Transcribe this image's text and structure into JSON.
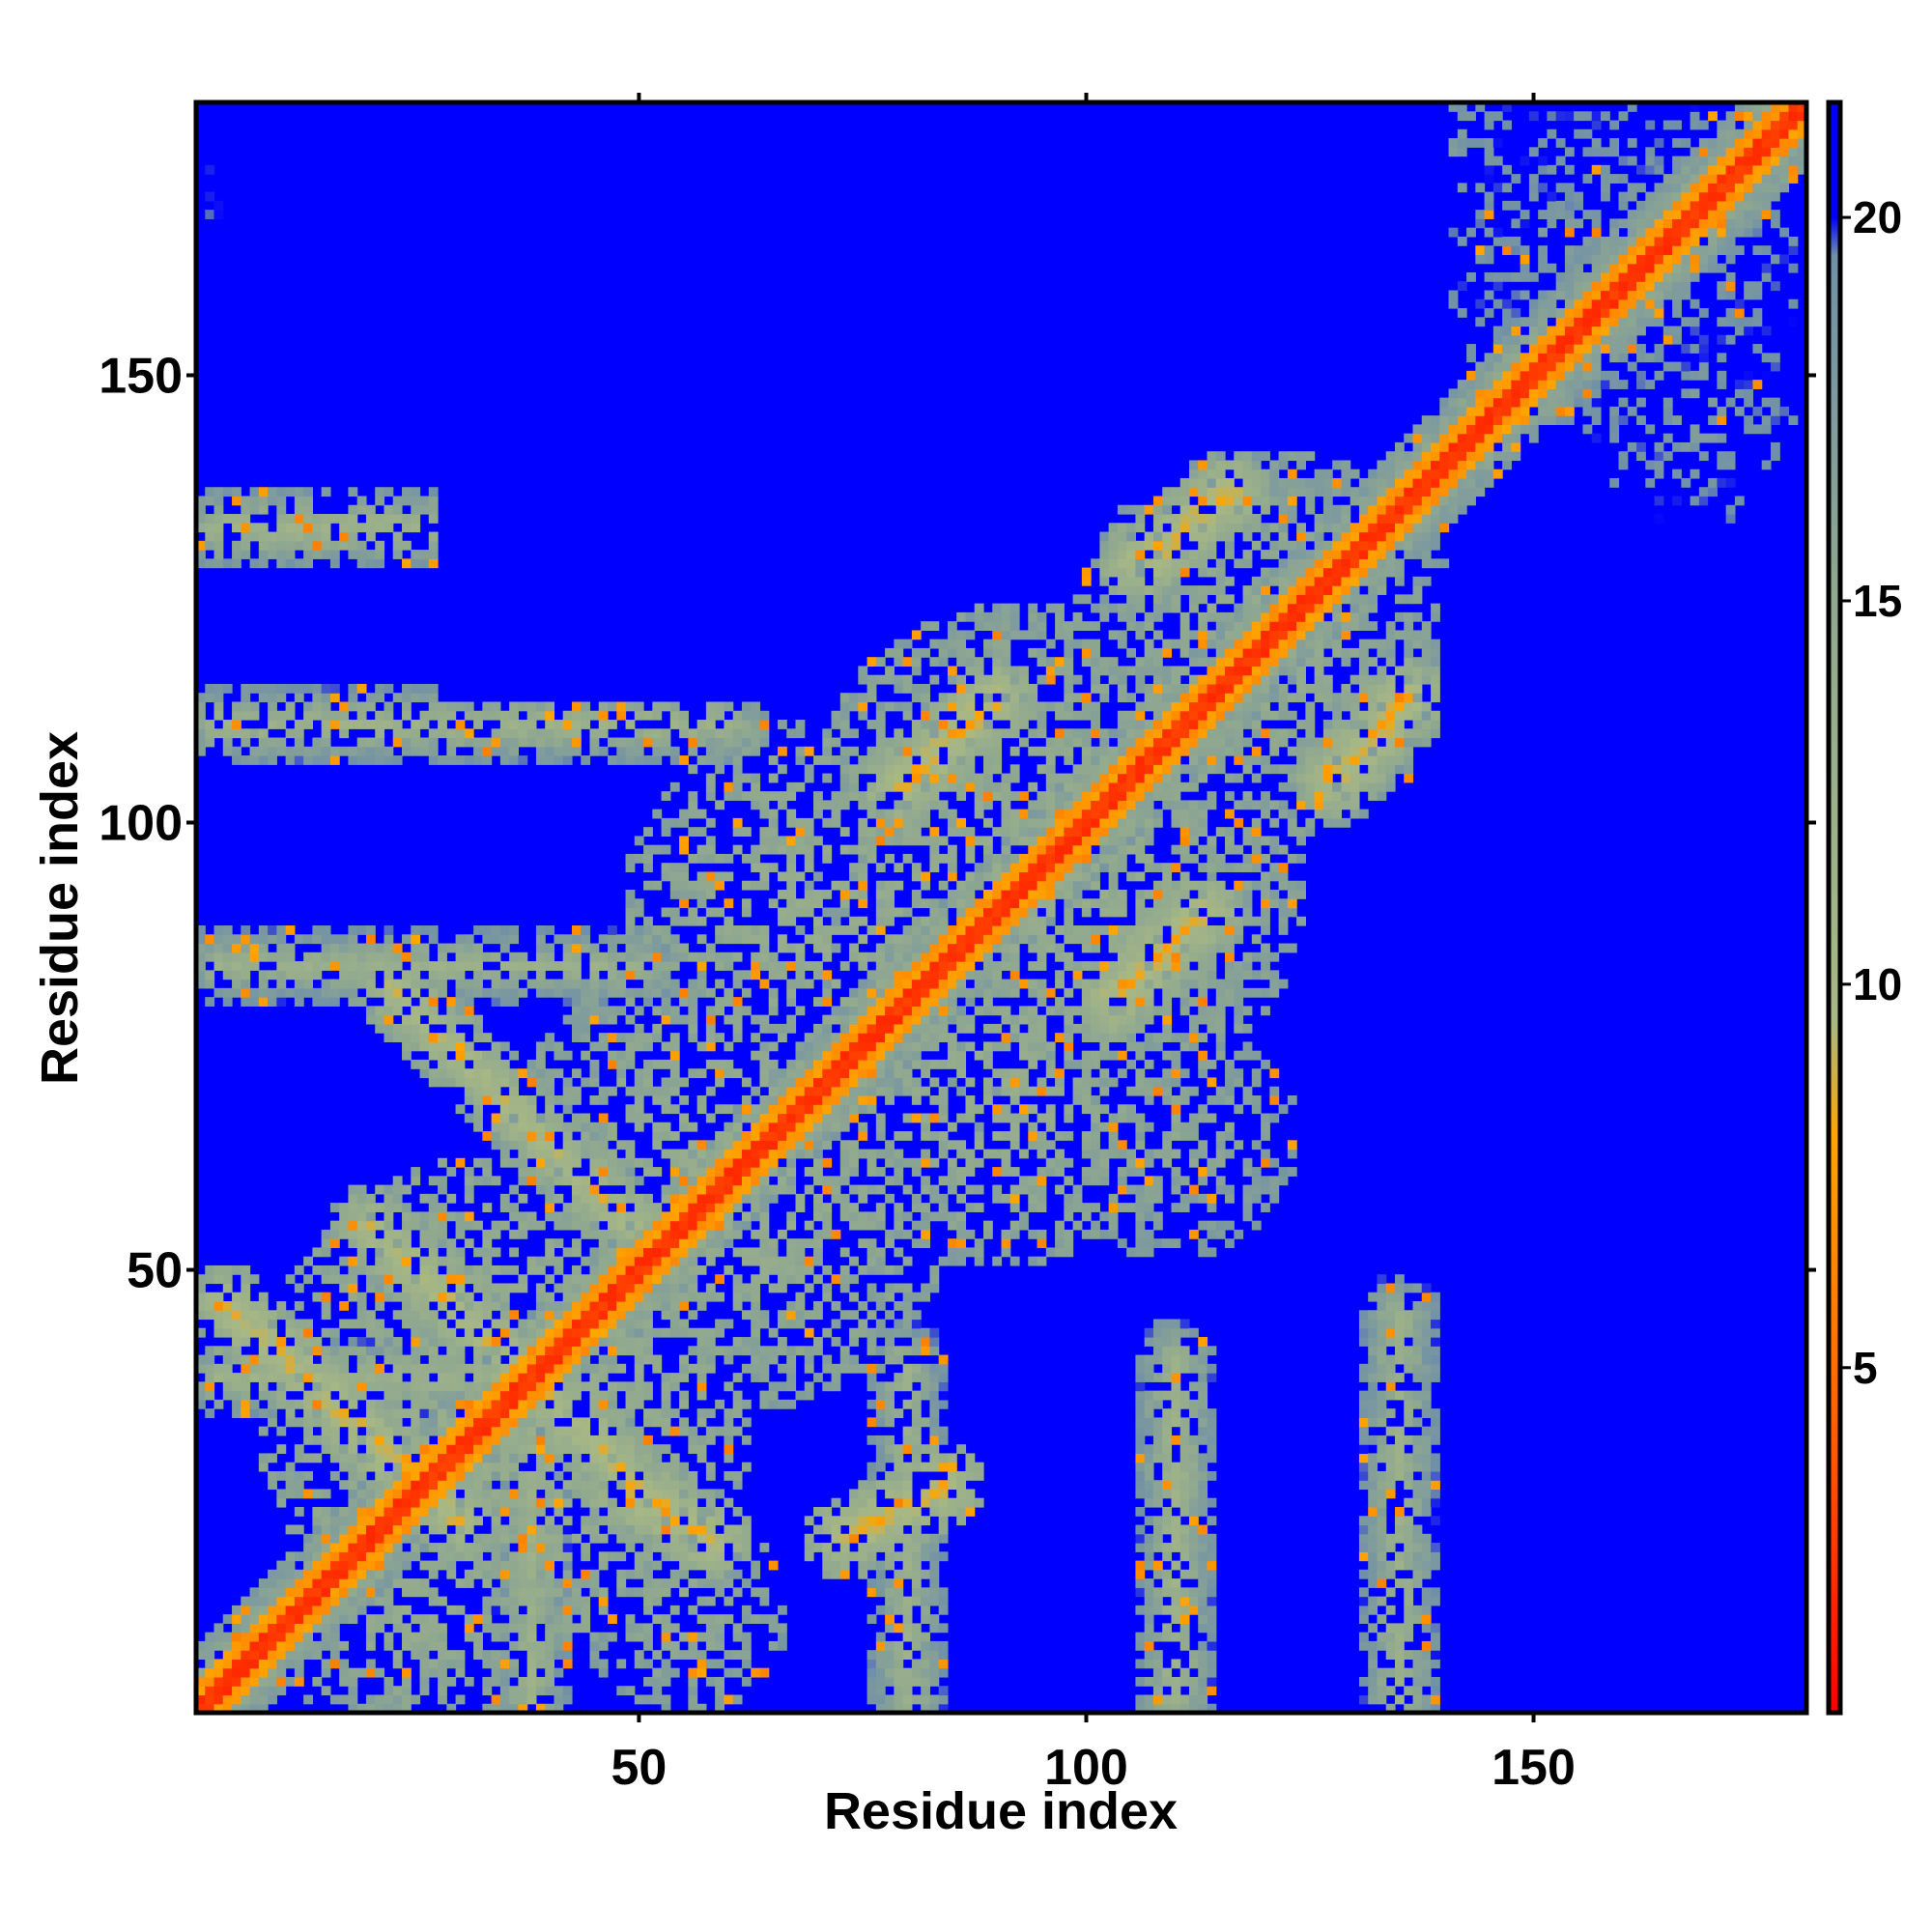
{
  "chart_data": {
    "type": "heatmap",
    "title": "",
    "xlabel": "Residue index",
    "ylabel": "Residue index",
    "n_residues": 180,
    "xlim": [
      0.5,
      180.5
    ],
    "ylim": [
      0.5,
      180.5
    ],
    "x_ticks": [
      50,
      100,
      150
    ],
    "y_ticks": [
      50,
      100,
      150
    ],
    "colorbar": {
      "range": [
        0.5,
        21.5
      ],
      "ticks": [
        5,
        10,
        15,
        20
      ],
      "stops": [
        {
          "value": 0.5,
          "color": "#ff0000"
        },
        {
          "value": 4.0,
          "color": "#ff5a00"
        },
        {
          "value": 8.0,
          "color": "#ffa500"
        },
        {
          "value": 9.5,
          "color": "#a8b884"
        },
        {
          "value": 15.0,
          "color": "#90a890"
        },
        {
          "value": 19.5,
          "color": "#7090a8"
        },
        {
          "value": 20.0,
          "color": "#0000ff"
        },
        {
          "value": 21.5,
          "color": "#0000ff"
        }
      ]
    },
    "value_meaning": "pairwise residue distance; values above 20 shown as blue",
    "diagonal_band": {
      "core_value": 2.0,
      "edge_value": 6.5,
      "halo_width": 7,
      "halo_value": 14
    },
    "contact_bands": [
      {
        "orientation": "anti",
        "from": [
          4,
          46
        ],
        "to": [
          30,
          22
        ],
        "value": 7.5
      },
      {
        "orientation": "anti",
        "from": [
          20,
          55
        ],
        "to": [
          48,
          28
        ],
        "value": 8.0
      },
      {
        "orientation": "anti",
        "from": [
          22,
          82
        ],
        "to": [
          52,
          52
        ],
        "value": 8.5
      },
      {
        "orientation": "anti",
        "from": [
          48,
          26
        ],
        "to": [
          58,
          20
        ],
        "value": 7.0
      },
      {
        "orientation": "anti",
        "from": [
          73,
          20
        ],
        "to": [
          84,
          26
        ],
        "value": 7.0
      },
      {
        "orientation": "parallel",
        "from": [
          79,
          104
        ],
        "to": [
          90,
          114
        ],
        "value": 7.0
      },
      {
        "orientation": "parallel",
        "from": [
          103,
          80
        ],
        "to": [
          113,
          90
        ],
        "value": 7.0
      },
      {
        "orientation": "parallel",
        "from": [
          106,
          129
        ],
        "to": [
          116,
          137
        ],
        "value": 7.0
      },
      {
        "orientation": "parallel",
        "from": [
          128,
          105
        ],
        "to": [
          136,
          114
        ],
        "value": 7.0
      },
      {
        "orientation": "horizontal",
        "from": [
          3,
          133
        ],
        "to": [
          45,
          133
        ],
        "value": 10.5
      },
      {
        "orientation": "horizontal",
        "from": [
          3,
          111
        ],
        "to": [
          60,
          111
        ],
        "value": 11.0
      },
      {
        "orientation": "horizontal",
        "from": [
          3,
          84
        ],
        "to": [
          50,
          84
        ],
        "value": 11.5
      },
      {
        "orientation": "horizontal",
        "from": [
          3,
          38
        ],
        "to": [
          40,
          38
        ],
        "value": 11.0
      },
      {
        "orientation": "vertical",
        "from": [
          110,
          2
        ],
        "to": [
          110,
          40
        ],
        "value": 11.0
      },
      {
        "orientation": "vertical",
        "from": [
          135,
          2
        ],
        "to": [
          135,
          45
        ],
        "value": 11.5
      },
      {
        "orientation": "vertical",
        "from": [
          80,
          2
        ],
        "to": [
          80,
          40
        ],
        "value": 11.5
      },
      {
        "orientation": "vertical",
        "from": [
          38,
          2
        ],
        "to": [
          38,
          30
        ],
        "value": 11.5
      }
    ],
    "contact_blobs": [
      {
        "center": [
          160,
          162
        ],
        "radius": 20,
        "value": 16.0,
        "density": 0.55
      },
      {
        "center": [
          140,
          175
        ],
        "radius": 10,
        "value": 16.5,
        "density": 0.45
      },
      {
        "center": [
          168,
          145
        ],
        "radius": 12,
        "value": 16.5,
        "density": 0.45
      },
      {
        "center": [
          120,
          120
        ],
        "radius": 22,
        "value": 13.0,
        "density": 0.6
      },
      {
        "center": [
          95,
          95
        ],
        "radius": 30,
        "value": 12.5,
        "density": 0.6
      },
      {
        "center": [
          70,
          90
        ],
        "radius": 22,
        "value": 12.5,
        "density": 0.55
      },
      {
        "center": [
          90,
          70
        ],
        "radius": 20,
        "value": 12.5,
        "density": 0.55
      },
      {
        "center": [
          60,
          60
        ],
        "radius": 26,
        "value": 12.5,
        "density": 0.55
      },
      {
        "center": [
          35,
          35
        ],
        "radius": 28,
        "value": 12.0,
        "density": 0.55
      },
      {
        "center": [
          110,
          65
        ],
        "radius": 14,
        "value": 14.0,
        "density": 0.5
      },
      {
        "center": [
          10,
          170
        ],
        "radius": 10,
        "value": 17.0,
        "density": 0.35
      },
      {
        "center": [
          115,
          170
        ],
        "radius": 8,
        "value": 17.5,
        "density": 0.35
      },
      {
        "center": [
          160,
          18
        ],
        "radius": 10,
        "value": 17.5,
        "density": 0.35
      },
      {
        "center": [
          162,
          114
        ],
        "radius": 8,
        "value": 17.5,
        "density": 0.35
      },
      {
        "center": [
          25,
          12
        ],
        "radius": 16,
        "value": 13.0,
        "density": 0.55
      },
      {
        "center": [
          55,
          12
        ],
        "radius": 12,
        "value": 13.5,
        "density": 0.5
      }
    ],
    "empty_regions": [
      {
        "x": [
          140,
          180
        ],
        "y": [
          2,
          128
        ]
      },
      {
        "x": [
          4,
          140
        ],
        "y": [
          150,
          180
        ]
      },
      {
        "x": [
          28,
          68
        ],
        "y": [
          114,
          148
        ]
      }
    ]
  }
}
